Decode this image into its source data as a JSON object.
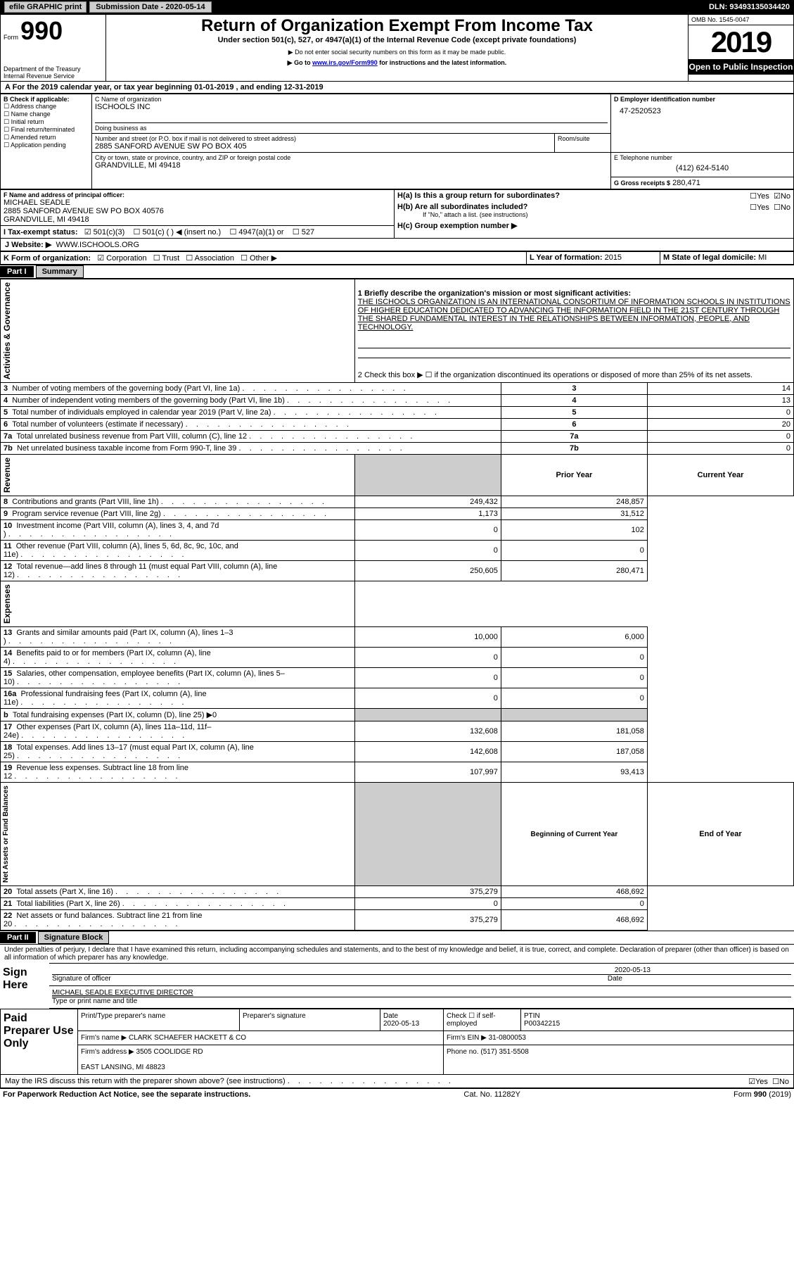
{
  "topbar": {
    "efile": "efile GRAPHIC print",
    "submission": "Submission Date - 2020-05-14",
    "dln": "DLN: 93493135034420"
  },
  "header": {
    "form_label": "Form",
    "form_number": "990",
    "dept": "Department of the Treasury\nInternal Revenue Service",
    "title": "Return of Organization Exempt From Income Tax",
    "subtitle": "Under section 501(c), 527, or 4947(a)(1) of the Internal Revenue Code (except private foundations)",
    "note1": "▶ Do not enter social security numbers on this form as it may be made public.",
    "note2_pre": "▶ Go to ",
    "note2_link": "www.irs.gov/Form990",
    "note2_post": " for instructions and the latest information.",
    "omb": "OMB No. 1545-0047",
    "year": "2019",
    "open": "Open to Public Inspection"
  },
  "period": {
    "line": "For the 2019 calendar year, or tax year beginning 01-01-2019    , and ending 12-31-2019"
  },
  "blockB": {
    "label": "B Check if applicable:",
    "items": [
      "Address change",
      "Name change",
      "Initial return",
      "Final return/terminated",
      "Amended return",
      "Application pending"
    ]
  },
  "blockC": {
    "name_lbl": "C Name of organization",
    "name": "ISCHOOLS INC",
    "dba_lbl": "Doing business as",
    "addr_lbl": "Number and street (or P.O. box if mail is not delivered to street address)",
    "room_lbl": "Room/suite",
    "addr": "2885 SANFORD AVENUE SW PO BOX 405",
    "city_lbl": "City or town, state or province, country, and ZIP or foreign postal code",
    "city": "GRANDVILLE, MI  49418"
  },
  "blockD": {
    "lbl": "D Employer identification number",
    "val": "47-2520523"
  },
  "blockE": {
    "lbl": "E Telephone number",
    "val": "(412) 624-5140"
  },
  "blockG": {
    "lbl": "G Gross receipts $",
    "val": "280,471"
  },
  "blockF": {
    "lbl": "F Name and address of principal officer:",
    "name": "MICHAEL SEADLE",
    "addr": "2885 SANFORD AVENUE SW PO BOX 40576\nGRANDVILLE, MI  49418"
  },
  "blockH": {
    "a": "H(a)  Is this a group return for subordinates?",
    "a_yes": "Yes",
    "a_no": "No",
    "b": "H(b)  Are all subordinates included?",
    "b_yes": "Yes",
    "b_no": "No",
    "b_note": "If \"No,\" attach a list. (see instructions)",
    "c": "H(c)  Group exemption number ▶"
  },
  "blockI": {
    "lbl": "I   Tax-exempt status:",
    "opts": [
      "501(c)(3)",
      "501(c) (  ) ◀ (insert no.)",
      "4947(a)(1) or",
      "527"
    ]
  },
  "blockJ": {
    "lbl": "J   Website: ▶",
    "val": "WWW.ISCHOOLS.ORG"
  },
  "blockK": {
    "lbl": "K Form of organization:",
    "opts": [
      "Corporation",
      "Trust",
      "Association",
      "Other ▶"
    ]
  },
  "blockL": {
    "lbl": "L Year of formation:",
    "val": "2015"
  },
  "blockM": {
    "lbl": "M State of legal domicile:",
    "val": "MI"
  },
  "part1": {
    "header": "Part I",
    "title": "Summary",
    "line1_lbl": "1   Briefly describe the organization's mission or most significant activities:",
    "line1_txt": "THE ISCHOOLS ORGANIZATION IS AN INTERNATIONAL CONSORTIUM OF INFORMATION SCHOOLS IN INSTITUTIONS OF HIGHER EDUCATION DEDICATED TO ADVANCING THE INFORMATION FIELD IN THE 21ST CENTURY THROUGH THE SHARED FUNDAMENTAL INTEREST IN THE RELATIONSHIPS BETWEEN INFORMATION, PEOPLE, AND TECHNOLOGY.",
    "line2": "2   Check this box ▶ ☐  if the organization discontinued its operations or disposed of more than 25% of its net assets.",
    "gov_lines": [
      {
        "n": "3",
        "t": "Number of voting members of the governing body (Part VI, line 1a)",
        "v": "14"
      },
      {
        "n": "4",
        "t": "Number of independent voting members of the governing body (Part VI, line 1b)",
        "v": "13"
      },
      {
        "n": "5",
        "t": "Total number of individuals employed in calendar year 2019 (Part V, line 2a)",
        "v": "0"
      },
      {
        "n": "6",
        "t": "Total number of volunteers (estimate if necessary)",
        "v": "20"
      },
      {
        "n": "7a",
        "t": "Total unrelated business revenue from Part VIII, column (C), line 12",
        "v": "0"
      },
      {
        "n": "7b",
        "t": "Net unrelated business taxable income from Form 990-T, line 39",
        "v": "0"
      }
    ],
    "col_prior": "Prior Year",
    "col_current": "Current Year",
    "rev_lines": [
      {
        "n": "8",
        "t": "Contributions and grants (Part VIII, line 1h)",
        "p": "249,432",
        "c": "248,857"
      },
      {
        "n": "9",
        "t": "Program service revenue (Part VIII, line 2g)",
        "p": "1,173",
        "c": "31,512"
      },
      {
        "n": "10",
        "t": "Investment income (Part VIII, column (A), lines 3, 4, and 7d )",
        "p": "0",
        "c": "102"
      },
      {
        "n": "11",
        "t": "Other revenue (Part VIII, column (A), lines 5, 6d, 8c, 9c, 10c, and 11e)",
        "p": "0",
        "c": "0"
      },
      {
        "n": "12",
        "t": "Total revenue—add lines 8 through 11 (must equal Part VIII, column (A), line 12)",
        "p": "250,605",
        "c": "280,471"
      }
    ],
    "exp_lines": [
      {
        "n": "13",
        "t": "Grants and similar amounts paid (Part IX, column (A), lines 1–3 )",
        "p": "10,000",
        "c": "6,000"
      },
      {
        "n": "14",
        "t": "Benefits paid to or for members (Part IX, column (A), line 4)",
        "p": "0",
        "c": "0"
      },
      {
        "n": "15",
        "t": "Salaries, other compensation, employee benefits (Part IX, column (A), lines 5–10)",
        "p": "0",
        "c": "0"
      },
      {
        "n": "16a",
        "t": "Professional fundraising fees (Part IX, column (A), line 11e)",
        "p": "0",
        "c": "0"
      },
      {
        "n": "b",
        "t": "Total fundraising expenses (Part IX, column (D), line 25) ▶0",
        "p": "",
        "c": ""
      },
      {
        "n": "17",
        "t": "Other expenses (Part IX, column (A), lines 11a–11d, 11f–24e)",
        "p": "132,608",
        "c": "181,058"
      },
      {
        "n": "18",
        "t": "Total expenses. Add lines 13–17 (must equal Part IX, column (A), line 25)",
        "p": "142,608",
        "c": "187,058"
      },
      {
        "n": "19",
        "t": "Revenue less expenses. Subtract line 18 from line 12",
        "p": "107,997",
        "c": "93,413"
      }
    ],
    "col_begin": "Beginning of Current Year",
    "col_end": "End of Year",
    "net_lines": [
      {
        "n": "20",
        "t": "Total assets (Part X, line 16)",
        "p": "375,279",
        "c": "468,692"
      },
      {
        "n": "21",
        "t": "Total liabilities (Part X, line 26)",
        "p": "0",
        "c": "0"
      },
      {
        "n": "22",
        "t": "Net assets or fund balances. Subtract line 21 from line 20",
        "p": "375,279",
        "c": "468,692"
      }
    ],
    "side_gov": "Activities & Governance",
    "side_rev": "Revenue",
    "side_exp": "Expenses",
    "side_net": "Net Assets or Fund Balances"
  },
  "part2": {
    "header": "Part II",
    "title": "Signature Block",
    "perjury": "Under penalties of perjury, I declare that I have examined this return, including accompanying schedules and statements, and to the best of my knowledge and belief, it is true, correct, and complete. Declaration of preparer (other than officer) is based on all information of which preparer has any knowledge.",
    "sign_here": "Sign Here",
    "sig_officer": "Signature of officer",
    "sig_date": "Date",
    "sig_date_val": "2020-05-13",
    "officer": "MICHAEL SEADLE  EXECUTIVE DIRECTOR",
    "officer_lbl": "Type or print name and title",
    "paid": "Paid Preparer Use Only",
    "prep_name_lbl": "Print/Type preparer's name",
    "prep_sig_lbl": "Preparer's signature",
    "prep_date_lbl": "Date",
    "prep_date": "2020-05-13",
    "prep_check": "Check ☐ if self-employed",
    "ptin_lbl": "PTIN",
    "ptin": "P00342215",
    "firm_name_lbl": "Firm's name    ▶",
    "firm_name": "CLARK SCHAEFER HACKETT & CO",
    "firm_ein_lbl": "Firm's EIN ▶",
    "firm_ein": "31-0800053",
    "firm_addr_lbl": "Firm's address ▶",
    "firm_addr": "3505 COOLIDGE RD\n\nEAST LANSING, MI  48823",
    "firm_phone_lbl": "Phone no.",
    "firm_phone": "(517) 351-5508",
    "discuss": "May the IRS discuss this return with the preparer shown above? (see instructions)",
    "yes": "Yes",
    "no": "No"
  },
  "footer": {
    "left": "For Paperwork Reduction Act Notice, see the separate instructions.",
    "mid": "Cat. No. 11282Y",
    "right": "Form 990 (2019)"
  },
  "glyph": {
    "box": "☐",
    "boxc": "☑",
    "tri": "▶"
  }
}
